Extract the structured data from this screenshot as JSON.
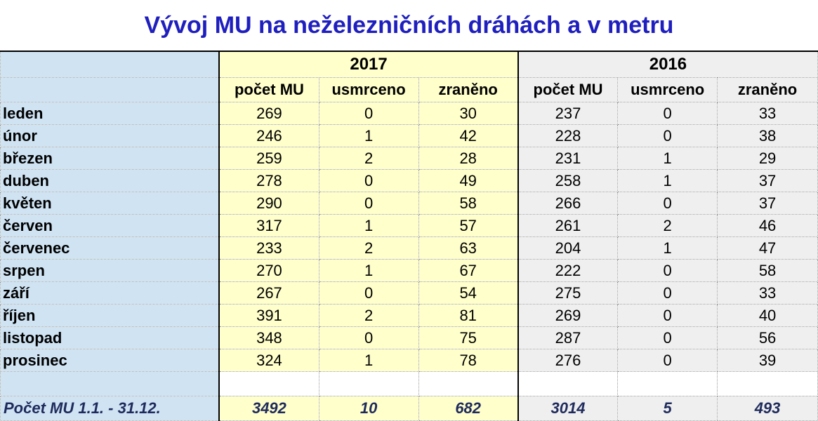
{
  "title": "Vývoj MU na neželezničních dráhách a v metru",
  "years": [
    "2017",
    "2016"
  ],
  "columns": [
    "počet MU",
    "usmrceno",
    "zraněno"
  ],
  "rows": [
    {
      "month": "leden",
      "y2017": [
        "269",
        "0",
        "30"
      ],
      "y2016": [
        "237",
        "0",
        "33"
      ]
    },
    {
      "month": "únor",
      "y2017": [
        "246",
        "1",
        "42"
      ],
      "y2016": [
        "228",
        "0",
        "38"
      ]
    },
    {
      "month": "březen",
      "y2017": [
        "259",
        "2",
        "28"
      ],
      "y2016": [
        "231",
        "1",
        "29"
      ]
    },
    {
      "month": "duben",
      "y2017": [
        "278",
        "0",
        "49"
      ],
      "y2016": [
        "258",
        "1",
        "37"
      ]
    },
    {
      "month": "květen",
      "y2017": [
        "290",
        "0",
        "58"
      ],
      "y2016": [
        "266",
        "0",
        "37"
      ]
    },
    {
      "month": "červen",
      "y2017": [
        "317",
        "1",
        "57"
      ],
      "y2016": [
        "261",
        "2",
        "46"
      ]
    },
    {
      "month": "červenec",
      "y2017": [
        "233",
        "2",
        "63"
      ],
      "y2016": [
        "204",
        "1",
        "47"
      ]
    },
    {
      "month": "srpen",
      "y2017": [
        "270",
        "1",
        "67"
      ],
      "y2016": [
        "222",
        "0",
        "58"
      ]
    },
    {
      "month": "září",
      "y2017": [
        "267",
        "0",
        "54"
      ],
      "y2016": [
        "275",
        "0",
        "33"
      ]
    },
    {
      "month": "říjen",
      "y2017": [
        "391",
        "2",
        "81"
      ],
      "y2016": [
        "269",
        "0",
        "40"
      ]
    },
    {
      "month": "listopad",
      "y2017": [
        "348",
        "0",
        "75"
      ],
      "y2016": [
        "287",
        "0",
        "56"
      ]
    },
    {
      "month": "prosinec",
      "y2017": [
        "324",
        "1",
        "78"
      ],
      "y2016": [
        "276",
        "0",
        "39"
      ]
    }
  ],
  "total": {
    "label": "Počet MU 1.1. - 31.12.",
    "y2017": [
      "3492",
      "10",
      "682"
    ],
    "y2016": [
      "3014",
      "5",
      "493"
    ]
  },
  "colors": {
    "title": "#1f1fbf",
    "label_column": "#cfe3f3",
    "year_2017_fill": "#ffffcc",
    "year_2016_fill": "#efefef",
    "total_text": "#1f2b5c"
  }
}
